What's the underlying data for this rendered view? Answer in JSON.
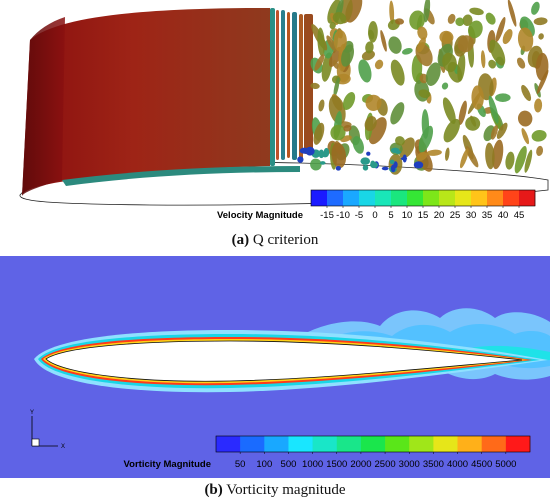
{
  "panel_a": {
    "caption_letter": "(a)",
    "caption_text": "Q criterion",
    "colorbar_title": "Velocity Magnitude",
    "colorbar_ticks": [
      "-15",
      "-10",
      "-5",
      "0",
      "5",
      "10",
      "15",
      "20",
      "25",
      "30",
      "35",
      "40",
      "45"
    ],
    "colorbar_colors": [
      "#1a1aff",
      "#1e6bff",
      "#1aa8ff",
      "#19d6e6",
      "#19e6b8",
      "#1ae67e",
      "#35e635",
      "#7de619",
      "#b8e619",
      "#e6e619",
      "#ffc419",
      "#ff8a19",
      "#ff4419",
      "#e61919"
    ]
  },
  "panel_b": {
    "caption_letter": "(b)",
    "caption_text": "Vorticity magnitude",
    "colorbar_title": "Vorticity Magnitude",
    "colorbar_ticks": [
      "50",
      "100",
      "500",
      "1000",
      "1500",
      "2000",
      "2500",
      "3000",
      "3500",
      "4000",
      "4500",
      "5000"
    ],
    "colorbar_colors": [
      "#2a2aff",
      "#1a6bff",
      "#19a8ff",
      "#19e6ff",
      "#19e6c8",
      "#19e68a",
      "#1ae64c",
      "#5ae619",
      "#a0e619",
      "#e6e619",
      "#ffb019",
      "#ff6a19",
      "#ff1919"
    ],
    "axis_y_label": "Y",
    "axis_x_label": "X"
  }
}
